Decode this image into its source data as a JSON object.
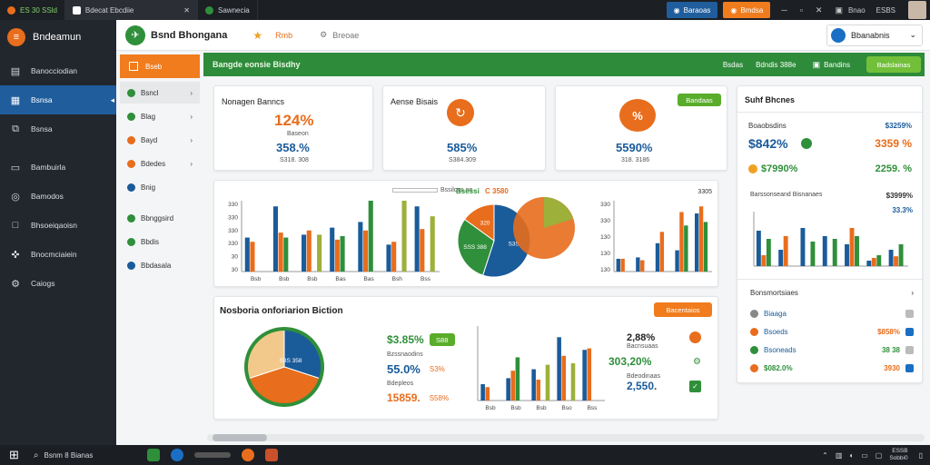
{
  "window": {
    "tabs": [
      {
        "label": "ES 30 SSld"
      },
      {
        "label": "Bdecat Ebcdiie"
      },
      {
        "label": "Sawnecia"
      }
    ],
    "right_buttons": [
      {
        "label": "Baraoas"
      },
      {
        "label": "Bmdsa"
      }
    ],
    "tray": {
      "label": "Bnao",
      "time": "ESBS"
    }
  },
  "sidebar": {
    "brand": "Bndeamun",
    "items": [
      {
        "label": "Banocciodian",
        "icon": "calendar-icon"
      },
      {
        "label": "Bsnsa",
        "icon": "building-icon"
      },
      {
        "label": "Bsnsa",
        "icon": "copy-icon"
      },
      {
        "label": "Bambuirla",
        "icon": "list-icon"
      },
      {
        "label": "Bamodos",
        "icon": "help-icon"
      },
      {
        "label": "Bhsoeiqaoisn",
        "icon": "square-icon"
      },
      {
        "label": "Bnocmciaiein",
        "icon": "plugin-icon"
      },
      {
        "label": "Caiogs",
        "icon": "gear-icon"
      }
    ]
  },
  "topbar": {
    "logo_title": "Bsnd Bhongana",
    "nav": [
      {
        "label": "Rmb"
      },
      {
        "label": "Breoae"
      }
    ],
    "user": "Bbanabnis"
  },
  "subnav": {
    "active": "Bseb",
    "items": [
      {
        "label": "Bsncl",
        "color": "#2f8f3a"
      },
      {
        "label": "Blag",
        "color": "#2f8f3a"
      },
      {
        "label": "Bayd",
        "color": "#e86d1c"
      },
      {
        "label": "Bdedes",
        "color": "#e86d1c"
      },
      {
        "label": "Bnig",
        "color": "#1a5b9a"
      },
      {
        "label": "Bbnggsird",
        "color": "#2f8f3a"
      },
      {
        "label": "Bbdis",
        "color": "#2f8f3a"
      },
      {
        "label": "Bbdasala",
        "color": "#1a5b9a"
      }
    ]
  },
  "header_bar": {
    "title": "Bangde eonsie Bisdhy",
    "links": [
      {
        "label": "Bsdas"
      },
      {
        "label": "Bdndis 388e"
      },
      {
        "label": "Bandins"
      }
    ],
    "button": "Badslainas"
  },
  "kpis": [
    {
      "title": "Nonagen Banncs",
      "value": "124%",
      "sub": "Baseon",
      "value2": "358.%",
      "sub2": "S318. 308"
    },
    {
      "title": "Aense Bisais",
      "value2": "585%",
      "sub2": "S384.309"
    },
    {
      "button": "Bandaas",
      "value2": "5590%",
      "sub2": "318. 3186"
    }
  ],
  "bar_chart_1": {
    "type": "bar",
    "y_ticks": [
      "330",
      "330",
      "330",
      "330",
      "30",
      "30"
    ],
    "categories": [
      "Bsb",
      "Bsb",
      "Bsb",
      "Bas",
      "Bas",
      "Bsh",
      "Bss"
    ],
    "legend_label": "Bssiloss oo",
    "series": [
      {
        "color": "#1a5b9a",
        "values": [
          48,
          92,
          52,
          62,
          70,
          38,
          92
        ]
      },
      {
        "color": "#e86d1c",
        "values": [
          42,
          55,
          58,
          45,
          58,
          42,
          60
        ]
      },
      {
        "color": "#2f8f3a",
        "values": [
          0,
          48,
          0,
          50,
          100,
          0,
          0
        ]
      },
      {
        "color": "#9cb03a",
        "values": [
          0,
          0,
          52,
          0,
          0,
          100,
          78
        ]
      }
    ]
  },
  "pie_top": {
    "title": "Bsessi",
    "value": "C 3580",
    "values": [
      55,
      30,
      15
    ],
    "labels": [
      "S3S",
      "SSS 388",
      "320"
    ]
  },
  "bar_chart_2": {
    "type": "bar",
    "top_label": "3305",
    "y_ticks": [
      "330",
      "330",
      "130",
      "130",
      "130"
    ],
    "series": [
      {
        "color": "#1a5b9a",
        "values": [
          18,
          20,
          40,
          30,
          82
        ]
      },
      {
        "color": "#e86d1c",
        "values": [
          18,
          16,
          56,
          84,
          92
        ]
      },
      {
        "color": "#2f8f3a",
        "values": [
          0,
          0,
          0,
          65,
          70
        ]
      }
    ]
  },
  "summary": {
    "title": "Nosboria onforiarion Biction",
    "button": "Bacentaios",
    "pie": {
      "values": [
        30,
        40,
        30
      ],
      "label": "S3S 358"
    },
    "metrics": [
      {
        "value": "$3.85%",
        "button": "S88",
        "label": "Bzssnaodins"
      },
      {
        "value": "55.0%",
        "side": "S3%",
        "label": "Bdepleos"
      },
      {
        "value": "15859.",
        "side": "S58%"
      }
    ],
    "bar": {
      "categories": [
        "Bsb",
        "Bsb",
        "Bsb",
        "Bso",
        "Bss"
      ],
      "series": [
        {
          "color": "#1a5b9a",
          "values": [
            22,
            30,
            42,
            85,
            68
          ]
        },
        {
          "color": "#e86d1c",
          "values": [
            18,
            40,
            28,
            60,
            70
          ]
        },
        {
          "color": "#2f8f3a",
          "values": [
            0,
            58,
            0,
            0,
            0
          ]
        },
        {
          "color": "#9cb03a",
          "values": [
            0,
            0,
            48,
            50,
            0
          ]
        }
      ]
    },
    "right_metrics": [
      {
        "value": "2,88%",
        "label": "Bacnsuaas",
        "color": "#222"
      },
      {
        "value": "303,20%",
        "color": "#2f8f3a"
      },
      {
        "value": "2,550.",
        "label": "Bdeodinaas",
        "color": "#1a5b9a"
      }
    ]
  },
  "right_panel": {
    "title": "Suhf Bhcnes",
    "header_left": "Boaobsdins",
    "header_right": "$3259%",
    "row1": {
      "left": "$842%",
      "right": "3359 %"
    },
    "row2": {
      "left": "$7990%",
      "right": "2259. %"
    },
    "chart_title": "Barssonseand Bisnanaes",
    "chart_right_label": "$3999%",
    "chart_mid_label": "33.3%",
    "chart_series": [
      {
        "color": "#1a5b9a",
        "values": [
          65,
          30,
          70,
          55,
          40,
          10,
          30
        ]
      },
      {
        "color": "#e86d1c",
        "values": [
          20,
          55,
          0,
          0,
          70,
          15,
          18
        ]
      },
      {
        "color": "#2f8f3a",
        "values": [
          50,
          0,
          45,
          50,
          55,
          20,
          40
        ]
      }
    ],
    "list_title": "Bonsmortsiaes",
    "list": [
      {
        "label": "Biaaga",
        "value": "",
        "color": "#888"
      },
      {
        "label": "Bsoeds",
        "value": "$858%",
        "color": "#e86d1c"
      },
      {
        "label": "Bsoneads",
        "value": "38 38",
        "color": "#2f8f3a"
      },
      {
        "label": "$082.0%",
        "value": "3930",
        "color": "#e86d1c"
      }
    ]
  },
  "taskbar": {
    "search": "Bsnm 8 Bianas",
    "clock_time": "ESSB",
    "clock_date": "Sobbi0"
  }
}
